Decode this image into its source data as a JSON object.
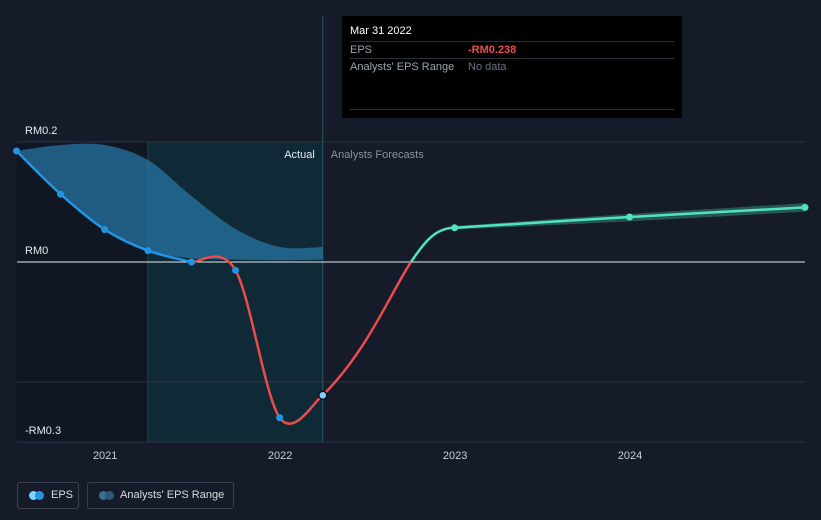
{
  "tooltip": {
    "date": "Mar 31 2022",
    "eps_label": "EPS",
    "eps_value": "-RM0.238",
    "range_label": "Analysts' EPS Range",
    "range_value": "No data"
  },
  "regions": {
    "actual": "Actual",
    "forecast": "Analysts Forecasts"
  },
  "legend": {
    "eps": "EPS",
    "range": "Analysts' EPS Range"
  },
  "colors": {
    "background": "#151b28",
    "eps_positive": "#2394e3",
    "eps_negative": "#e84c4c",
    "forecast": "#4fe3c0",
    "range_band": "#2a7fb5"
  },
  "chart_data": {
    "type": "line",
    "y_tick_labels": [
      "RM0.2",
      "RM0",
      "-RM0.3"
    ],
    "x_tick_labels": [
      "2021",
      "2022",
      "2023",
      "2024"
    ],
    "ylim": [
      -0.3,
      0.2
    ],
    "xlim": [
      "2020-07-01",
      "2024-12-31"
    ],
    "actual_end": "2022-03-31",
    "series": [
      {
        "name": "EPS",
        "x": [
          "2020-06-30",
          "2020-09-30",
          "2020-12-31",
          "2021-03-31",
          "2021-06-30",
          "2021-09-30",
          "2021-12-31",
          "2022-03-31"
        ],
        "values": [
          0.185,
          0.113,
          0.054,
          0.019,
          0.0,
          -0.015,
          -0.278,
          -0.238
        ]
      },
      {
        "name": "Forecast EPS",
        "x": [
          "2022-12-31",
          "2023-12-31",
          "2024-12-31"
        ],
        "values": [
          0.057,
          0.075,
          0.091
        ]
      }
    ],
    "analyst_eps_range_historic": {
      "x": [
        "2020-06-30",
        "2020-09-30",
        "2020-12-31",
        "2021-03-31",
        "2021-06-30",
        "2021-09-30",
        "2021-12-31",
        "2022-03-31"
      ],
      "high": [
        0.185,
        0.195,
        0.195,
        0.17,
        0.11,
        0.055,
        0.025,
        0.025
      ],
      "low": [
        0.185,
        0.113,
        0.054,
        0.019,
        0.006,
        0.004,
        0.003,
        0.004
      ]
    },
    "analyst_eps_range_forecast": {
      "x": [
        "2022-12-31",
        "2023-12-31",
        "2024-12-31"
      ],
      "high": [
        0.06,
        0.08,
        0.098
      ],
      "low": [
        0.054,
        0.068,
        0.084
      ]
    }
  }
}
